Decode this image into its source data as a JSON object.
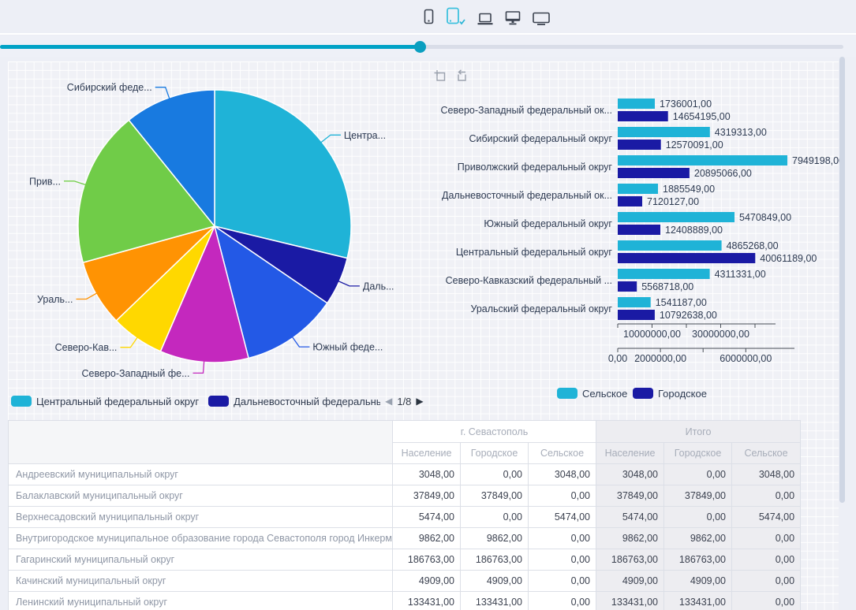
{
  "header": {
    "devices": [
      {
        "name": "phone",
        "selected": false
      },
      {
        "name": "tablet",
        "selected": true
      },
      {
        "name": "laptop",
        "selected": false
      },
      {
        "name": "desktop",
        "selected": false
      },
      {
        "name": "monitor",
        "selected": false
      }
    ],
    "accent": "#3ec1de"
  },
  "slider": {
    "value_pct": 49.8,
    "fill": "#00a2c6",
    "track": "#d9dde8"
  },
  "chart_data": [
    {
      "type": "pie",
      "title": "",
      "slices": [
        {
          "label": "Центральный федеральный округ",
          "display": "Центра...",
          "value": 44926457,
          "color": "#1fb3d7"
        },
        {
          "label": "Дальневосточный федеральный округ",
          "display": "Даль...",
          "value": 9005676,
          "color": "#1a1aa4"
        },
        {
          "label": "Южный федеральный округ",
          "display": "Южный феде...",
          "value": 17879738,
          "color": "#2359e6"
        },
        {
          "label": "Северо-Западный федеральный округ",
          "display": "Северо-Западный фе...",
          "value": 16390196,
          "color": "#c428be"
        },
        {
          "label": "Северо-Кавказский федеральный округ",
          "display": "Северо-Кав...",
          "value": 9880049,
          "color": "#ffd800"
        },
        {
          "label": "Уральский федеральный округ",
          "display": "Ураль...",
          "value": 12333825,
          "color": "#ff9303"
        },
        {
          "label": "Приволжский федеральный округ",
          "display": "Прив...",
          "value": 28844264,
          "color": "#70cc48"
        },
        {
          "label": "Сибирский федеральный округ",
          "display": "Сибирский феде...",
          "value": 16889404,
          "color": "#187ae0"
        }
      ],
      "legend": {
        "items": [
          {
            "label": "Центральный федеральный округ",
            "color": "#1fb3d7"
          },
          {
            "label": "Дальневосточный федеральны",
            "color": "#1a1aa4"
          }
        ],
        "page": "1/8",
        "prev_arrow": "◀",
        "next_arrow": "▶"
      }
    },
    {
      "type": "bar",
      "orientation": "horizontal",
      "categories": [
        "Северо-Западный федеральный ок...",
        "Сибирский федеральный округ",
        "Приволжский федеральный округ",
        "Дальневосточный федеральный ок...",
        "Южный федеральный округ",
        "Центральный федеральный округ",
        "Северо-Кавказский федеральный ...",
        "Уральский федеральный округ"
      ],
      "series": [
        {
          "name": "Сельское",
          "color": "#1fb3d7",
          "values": [
            1736001,
            4319313,
            7949198,
            1885549,
            5470849,
            4865268,
            4311331,
            1541187
          ]
        },
        {
          "name": "Городское",
          "color": "#1a1aa4",
          "values": [
            14654195,
            12570091,
            20895066,
            7120127,
            12408889,
            40061189,
            5568718,
            10792638
          ]
        }
      ],
      "value_decimals_suffix": ",00",
      "axis_top": {
        "series": "Городское",
        "ticks": [
          0,
          10000000,
          20000000,
          30000000,
          40000000
        ],
        "labeled": [
          10000000,
          30000000
        ]
      },
      "axis_bottom": {
        "series": "Сельское",
        "ticks": [
          0,
          2000000,
          4000000,
          6000000
        ],
        "labeled": [
          0,
          2000000,
          6000000
        ]
      },
      "legend_position": "bottom"
    }
  ],
  "table": {
    "groups": [
      {
        "label": "г. Севастополь",
        "itogo": false
      },
      {
        "label": "Итого",
        "itogo": true
      }
    ],
    "sub_columns": [
      "Население",
      "Городское",
      "Сельское"
    ],
    "rows": [
      {
        "name": "Андреевский муниципальный округ",
        "sev": [
          "3048,00",
          "0,00",
          "3048,00"
        ],
        "itogo": [
          "3048,00",
          "0,00",
          "3048,00"
        ]
      },
      {
        "name": "Балаклавский муниципальный округ",
        "sev": [
          "37849,00",
          "37849,00",
          "0,00"
        ],
        "itogo": [
          "37849,00",
          "37849,00",
          "0,00"
        ]
      },
      {
        "name": "Верхнесадовский муниципальный округ",
        "sev": [
          "5474,00",
          "0,00",
          "5474,00"
        ],
        "itogo": [
          "5474,00",
          "0,00",
          "5474,00"
        ]
      },
      {
        "name": "Внутригородское муниципальное образование города Севастополя город Инкерман",
        "sev": [
          "9862,00",
          "9862,00",
          "0,00"
        ],
        "itogo": [
          "9862,00",
          "9862,00",
          "0,00"
        ]
      },
      {
        "name": "Гагаринский муниципальный округ",
        "sev": [
          "186763,00",
          "186763,00",
          "0,00"
        ],
        "itogo": [
          "186763,00",
          "186763,00",
          "0,00"
        ]
      },
      {
        "name": "Качинский муниципальный округ",
        "sev": [
          "4909,00",
          "4909,00",
          "0,00"
        ],
        "itogo": [
          "4909,00",
          "4909,00",
          "0,00"
        ]
      },
      {
        "name": "Ленинский муниципальный округ",
        "sev": [
          "133431,00",
          "133431,00",
          "0,00"
        ],
        "itogo": [
          "133431,00",
          "133431,00",
          "0,00"
        ]
      }
    ]
  }
}
